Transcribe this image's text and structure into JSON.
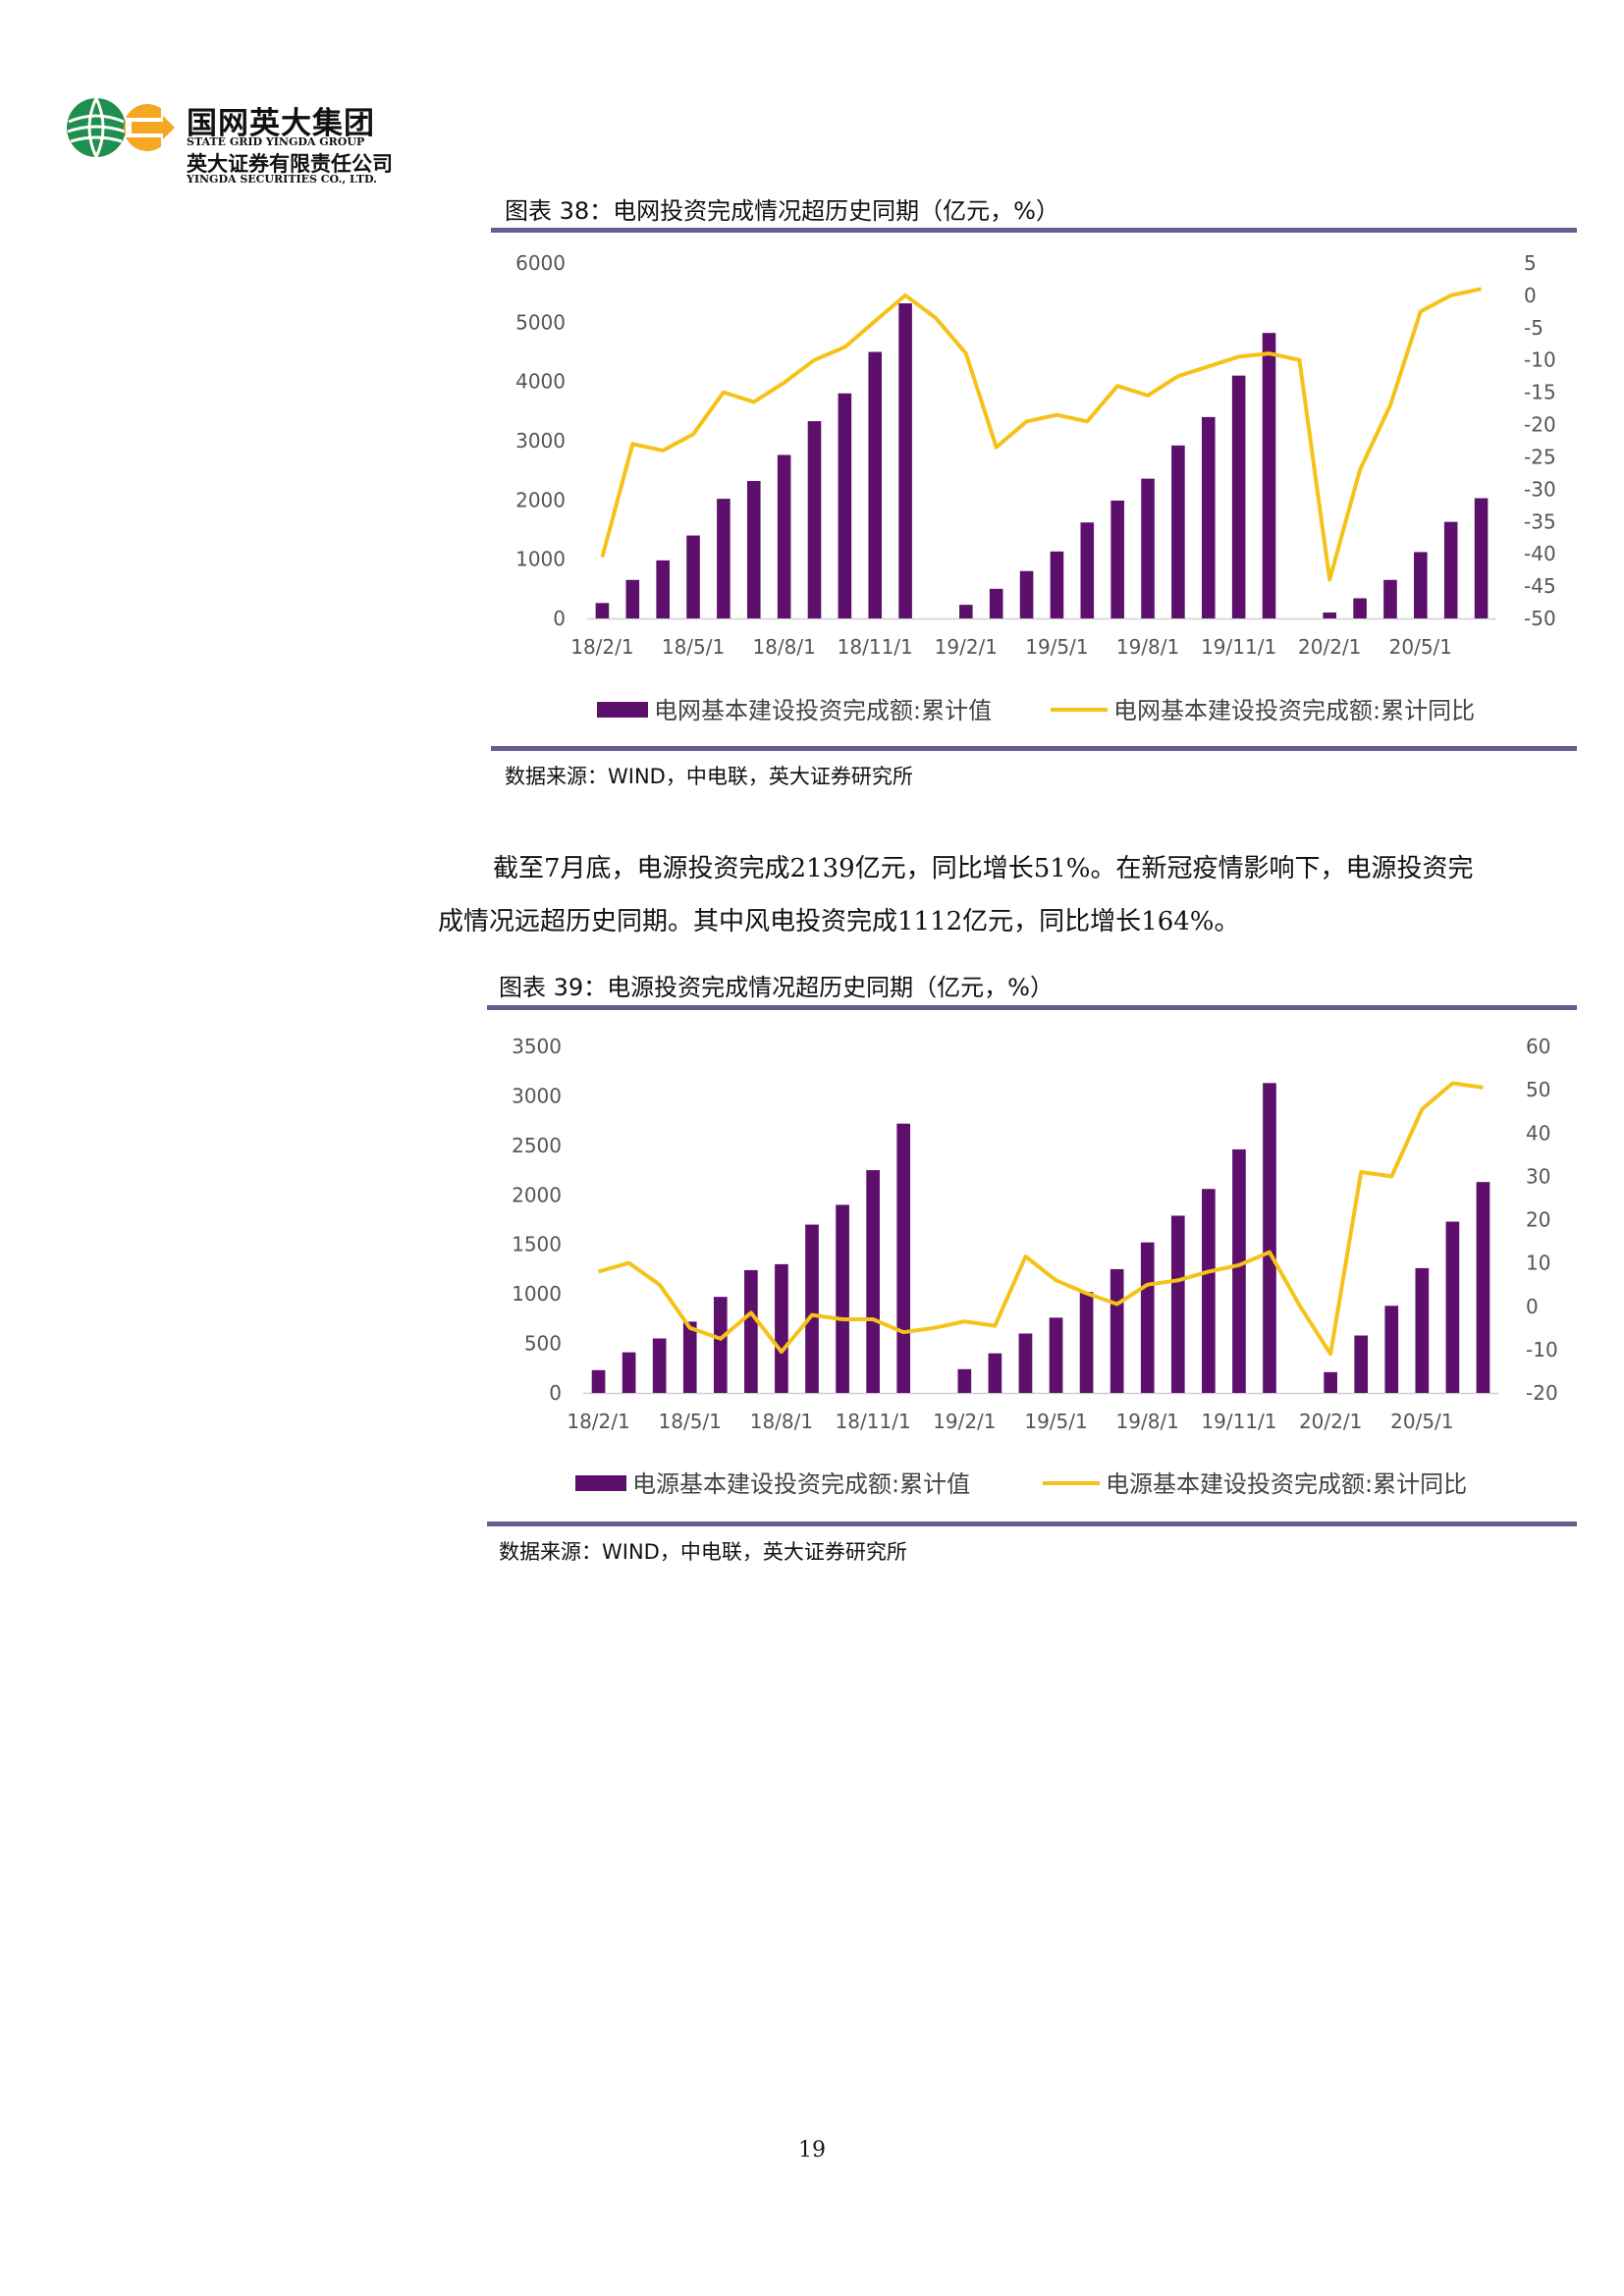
{
  "header": {
    "company_cn": "国网英大集团",
    "company_en": "STATE GRID YINGDA GROUP",
    "subsidiary_cn": "英大证券有限责任公司",
    "subsidiary_en": "YINGDA SECURITIES CO., LTD.",
    "logo_colors": {
      "green": "#1f8f4e",
      "orange": "#f5a623"
    }
  },
  "figure38": {
    "title": "图表 38：电网投资完成情况超历史同期（亿元，%）",
    "source": "数据来源：WIND，中电联，英大证券研究所"
  },
  "paragraph": {
    "line1": "截至7月底，电源投资完成2139亿元，同比增长51%。在新冠疫情影响下，电源投资完",
    "line2": "成情况远超历史同期。其中风电投资完成1112亿元，同比增长164%。"
  },
  "figure39": {
    "title": "图表 39：电源投资完成情况超历史同期（亿元，%）",
    "source": "数据来源：WIND，中电联，英大证券研究所"
  },
  "page_number": "19",
  "chart_data": [
    {
      "type": "bar+line",
      "categories": [
        "18/2/1",
        "18/3/1",
        "18/4/1",
        "18/5/1",
        "18/6/1",
        "18/7/1",
        "18/8/1",
        "18/9/1",
        "18/10/1",
        "18/11/1",
        "18/12/1",
        "19/1/1",
        "19/2/1",
        "19/3/1",
        "19/4/1",
        "19/5/1",
        "19/6/1",
        "19/7/1",
        "19/8/1",
        "19/9/1",
        "19/10/1",
        "19/11/1",
        "19/12/1",
        "20/1/1",
        "20/2/1",
        "20/3/1",
        "20/4/1",
        "20/5/1",
        "20/6/1",
        "20/7/1"
      ],
      "tick_labels": [
        "18/2/1",
        "18/5/1",
        "18/8/1",
        "18/11/1",
        "19/2/1",
        "19/5/1",
        "19/8/1",
        "19/11/1",
        "20/2/1",
        "20/5/1"
      ],
      "tick_every": 3,
      "series": [
        {
          "name": "电网基本建设投资完成额:累计值",
          "kind": "bar",
          "axis": "left",
          "color": "#5c0f6b",
          "values": [
            260,
            650,
            980,
            1400,
            2020,
            2320,
            2760,
            3330,
            3800,
            4500,
            5320,
            null,
            230,
            500,
            800,
            1130,
            1620,
            1990,
            2360,
            2920,
            3400,
            4100,
            4820,
            null,
            100,
            340,
            650,
            1120,
            1630,
            2030
          ]
        },
        {
          "name": "电网基本建设投资完成额:累计同比",
          "kind": "line",
          "axis": "right",
          "color": "#f5c218",
          "values": [
            -40.5,
            -23,
            -24,
            -21.5,
            -15,
            -16.5,
            -13.5,
            -10,
            -8,
            -4,
            0,
            -3.5,
            -9,
            -23.5,
            -19.5,
            -18.5,
            -19.5,
            -14,
            -15.5,
            -12.5,
            -11,
            -9.5,
            -9,
            -10,
            -44,
            -27,
            -17,
            -2.5,
            0,
            1
          ]
        }
      ],
      "ylim_left": [
        0,
        6000
      ],
      "yticks_left": [
        0,
        1000,
        2000,
        3000,
        4000,
        5000,
        6000
      ],
      "ylim_right": [
        -50,
        5
      ],
      "yticks_right": [
        -50,
        -45,
        -40,
        -35,
        -30,
        -25,
        -20,
        -15,
        -10,
        -5,
        0,
        5
      ],
      "legend_placement": "bottom",
      "grid": false
    },
    {
      "type": "bar+line",
      "categories": [
        "18/2/1",
        "18/3/1",
        "18/4/1",
        "18/5/1",
        "18/6/1",
        "18/7/1",
        "18/8/1",
        "18/9/1",
        "18/10/1",
        "18/11/1",
        "18/12/1",
        "19/1/1",
        "19/2/1",
        "19/3/1",
        "19/4/1",
        "19/5/1",
        "19/6/1",
        "19/7/1",
        "19/8/1",
        "19/9/1",
        "19/10/1",
        "19/11/1",
        "19/12/1",
        "20/1/1",
        "20/2/1",
        "20/3/1",
        "20/4/1",
        "20/5/1",
        "20/6/1",
        "20/7/1"
      ],
      "tick_labels": [
        "18/2/1",
        "18/5/1",
        "18/8/1",
        "18/11/1",
        "19/2/1",
        "19/5/1",
        "19/8/1",
        "19/11/1",
        "20/2/1",
        "20/5/1"
      ],
      "tick_every": 3,
      "series": [
        {
          "name": "电源基本建设投资完成额:累计值",
          "kind": "bar",
          "axis": "left",
          "color": "#5c0f6b",
          "values": [
            230,
            410,
            550,
            720,
            970,
            1240,
            1300,
            1700,
            1900,
            2250,
            2720,
            null,
            240,
            400,
            600,
            760,
            1020,
            1250,
            1520,
            1790,
            2060,
            2460,
            3130,
            null,
            210,
            580,
            880,
            1260,
            1730,
            2130
          ]
        },
        {
          "name": "电源基本建设投资完成额:累计同比",
          "kind": "line",
          "axis": "right",
          "color": "#f5c218",
          "values": [
            8,
            10,
            5,
            -5,
            -7.5,
            -1.5,
            -10.5,
            -2,
            -3,
            -3,
            -6,
            -5,
            -3.5,
            -4.5,
            11.5,
            6,
            3,
            0.5,
            5,
            6,
            8,
            9.5,
            12.5,
            0,
            -11,
            31,
            30,
            45.5,
            51.5,
            50.5
          ]
        }
      ],
      "ylim_left": [
        0,
        3500
      ],
      "yticks_left": [
        0,
        500,
        1000,
        1500,
        2000,
        2500,
        3000,
        3500
      ],
      "ylim_right": [
        -20,
        60
      ],
      "yticks_right": [
        -20,
        -10,
        0,
        10,
        20,
        30,
        40,
        50,
        60
      ],
      "legend_placement": "bottom",
      "grid": false
    }
  ]
}
